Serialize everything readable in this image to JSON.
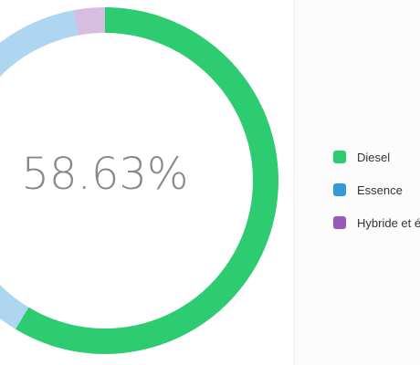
{
  "chart_data": {
    "type": "pie",
    "variant": "donut",
    "center_label": "58.63%",
    "slices": [
      {
        "label": "Diesel",
        "value": 58.63,
        "color": "#2ecc71"
      },
      {
        "label": "Essence",
        "value": 38.49,
        "color": "#3498db"
      },
      {
        "label": "Hybride et é",
        "value": 2.88,
        "color": "#9b59b6"
      }
    ],
    "highlighted": "Diesel",
    "legend_position": "right",
    "dimmed_opacity": 0.4
  },
  "legend": {
    "items": [
      {
        "label": "Diesel",
        "color": "#2ecc71"
      },
      {
        "label": "Essence",
        "color": "#3498db"
      },
      {
        "label": "Hybride et é",
        "color": "#9b59b6"
      }
    ]
  }
}
